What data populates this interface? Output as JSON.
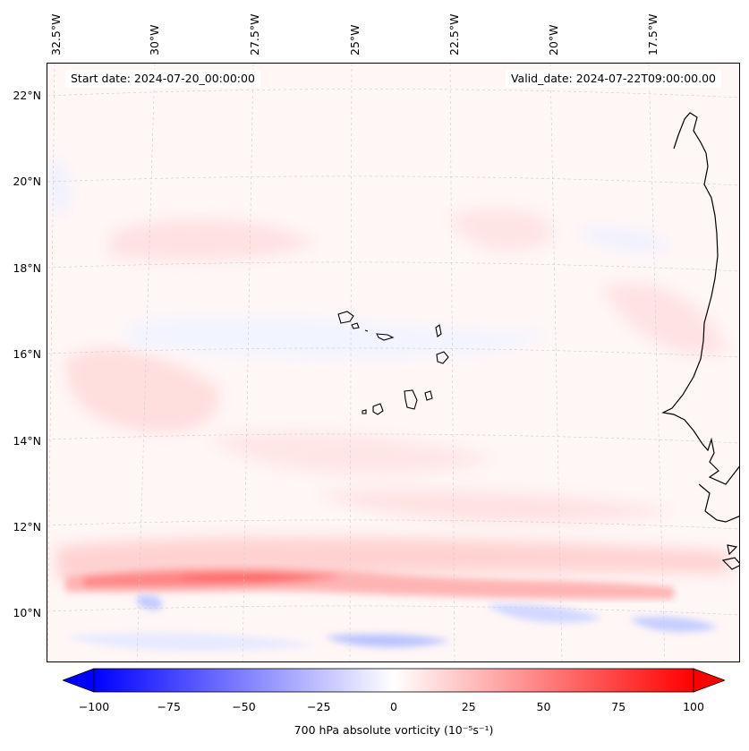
{
  "map": {
    "start_date": "Start date: 2024-07-20_00:00:00",
    "valid_date": "Valid_date: 2024-07-22T09:00:00.00",
    "lon_labels": [
      "32.5°W",
      "30°W",
      "27.5°W",
      "25°W",
      "22.5°W",
      "20°W",
      "17.5°W"
    ],
    "lat_labels": [
      "22°N",
      "20°N",
      "18°N",
      "16°N",
      "14°N",
      "12°N",
      "10°N"
    ],
    "variable": "700 hPa absolute vorticity",
    "units": "(10⁻⁵s⁻¹)",
    "colorbar_ticks": [
      "−100",
      "−75",
      "−50",
      "−25",
      "0",
      "25",
      "50",
      "75",
      "100"
    ],
    "colors": {
      "negative": "#0000ff",
      "positive": "#ff0000",
      "neutral": "#ffffff",
      "coast": "#000000"
    }
  }
}
